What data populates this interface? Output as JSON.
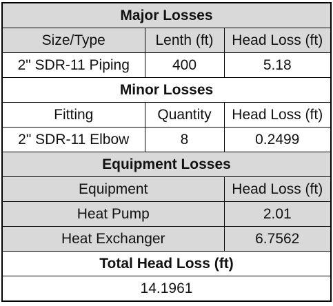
{
  "major_losses": {
    "title": "Major Losses",
    "headers": [
      "Size/Type",
      "Lenth (ft)",
      "Head Loss (ft)"
    ],
    "row": [
      "2\" SDR-11 Piping",
      "400",
      "5.18"
    ]
  },
  "minor_losses": {
    "title": "Minor Losses",
    "headers": [
      "Fitting",
      "Quantity",
      "Head Loss (ft)"
    ],
    "row": [
      "2\" SDR-11 Elbow",
      "8",
      "0.2499"
    ]
  },
  "equipment_losses": {
    "title": "Equipment Losses",
    "headers": [
      "Equipment",
      "Head Loss (ft)"
    ],
    "rows": [
      [
        "Heat Pump",
        "2.01"
      ],
      [
        "Heat Exchanger",
        "6.7562"
      ]
    ]
  },
  "total": {
    "title": "Total Head Loss (ft)",
    "value": "14.1961"
  }
}
